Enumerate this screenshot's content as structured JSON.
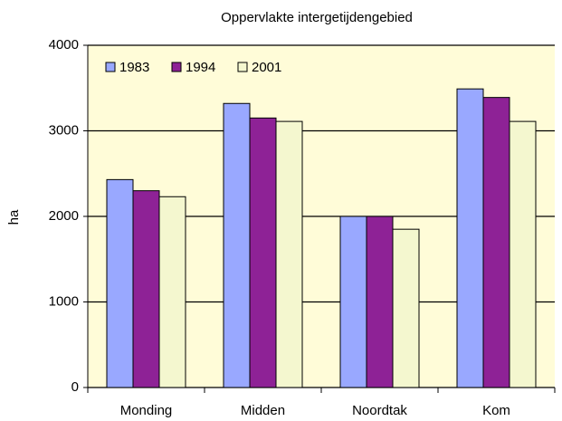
{
  "chart_data": {
    "type": "bar",
    "title": "Oppervlakte intergetijdengebied",
    "y_label": "ha",
    "categories": [
      "Monding",
      "Midden",
      "Noordtak",
      "Kom"
    ],
    "series": [
      {
        "name": "1983",
        "color": "#99a8ff",
        "values": [
          2430,
          3320,
          2000,
          3490
        ]
      },
      {
        "name": "1994",
        "color": "#8e2296",
        "values": [
          2300,
          3150,
          2000,
          3390
        ]
      },
      {
        "name": "2001",
        "color": "#f4f7cf",
        "values": [
          2230,
          3110,
          1850,
          3110
        ]
      }
    ],
    "ylim": [
      0,
      4000
    ],
    "yticks": [
      0,
      1000,
      2000,
      3000,
      4000
    ],
    "grid": true,
    "legend": "top-left",
    "plot_background": "#fffcd8"
  }
}
